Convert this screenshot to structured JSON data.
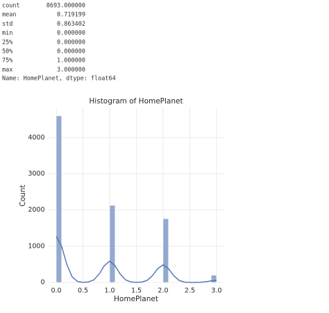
{
  "describe": {
    "rows": [
      [
        "count",
        "8693.000000"
      ],
      [
        "mean",
        "0.719199"
      ],
      [
        "std",
        "0.863402"
      ],
      [
        "min",
        "0.000000"
      ],
      [
        "25%",
        "0.000000"
      ],
      [
        "50%",
        "0.000000"
      ],
      [
        "75%",
        "1.000000"
      ],
      [
        "max",
        "3.000000"
      ]
    ],
    "footer": "Name: HomePlanet, dtype: float64"
  },
  "chart_data": {
    "type": "histogram",
    "title": "Histogram of HomePlanet",
    "xlabel": "HomePlanet",
    "ylabel": "Count",
    "bins": [
      0,
      0.1,
      0.2,
      0.3,
      0.4,
      0.5,
      0.6,
      0.7,
      0.8,
      0.9,
      1,
      1.1,
      1.2,
      1.3,
      1.4,
      1.5,
      1.6,
      1.7,
      1.8,
      1.9,
      2,
      2.1,
      2.2,
      2.3,
      2.4,
      2.5,
      2.6,
      2.7,
      2.8,
      2.9,
      3
    ],
    "counts": [
      4600,
      0,
      0,
      0,
      0,
      0,
      0,
      0,
      0,
      0,
      2130,
      0,
      0,
      0,
      0,
      0,
      0,
      0,
      0,
      0,
      1760,
      0,
      0,
      0,
      0,
      0,
      0,
      0,
      0,
      200
    ],
    "color": "#94a9d0",
    "kde": {
      "color": "#4c72b0",
      "x": [
        0,
        0.1,
        0.2,
        0.3,
        0.4,
        0.5,
        0.6,
        0.7,
        0.8,
        0.9,
        1,
        1.1,
        1.2,
        1.3,
        1.4,
        1.5,
        1.6,
        1.7,
        1.8,
        1.9,
        2,
        2.1,
        2.2,
        2.3,
        2.4,
        2.5,
        2.6,
        2.7,
        2.8,
        2.9,
        3
      ],
      "values": [
        1270,
        1000,
        488,
        147,
        28,
        4,
        13,
        68,
        226,
        463,
        588,
        463,
        226,
        68,
        13,
        3,
        11,
        56,
        187,
        382,
        486,
        382,
        187,
        56,
        11,
        1,
        1,
        6,
        21,
        43,
        55
      ]
    },
    "xlim": [
      -0.15,
      3.15
    ],
    "ylim": [
      0,
      4830
    ],
    "xticks": [
      {
        "value": 0,
        "label": "0.0"
      },
      {
        "value": 0.5,
        "label": "0.5"
      },
      {
        "value": 1,
        "label": "1.0"
      },
      {
        "value": 1.5,
        "label": "1.5"
      },
      {
        "value": 2,
        "label": "2.0"
      },
      {
        "value": 2.5,
        "label": "2.5"
      },
      {
        "value": 3,
        "label": "3.0"
      }
    ],
    "yticks": [
      0,
      1000,
      2000,
      3000,
      4000
    ],
    "grid": true
  }
}
